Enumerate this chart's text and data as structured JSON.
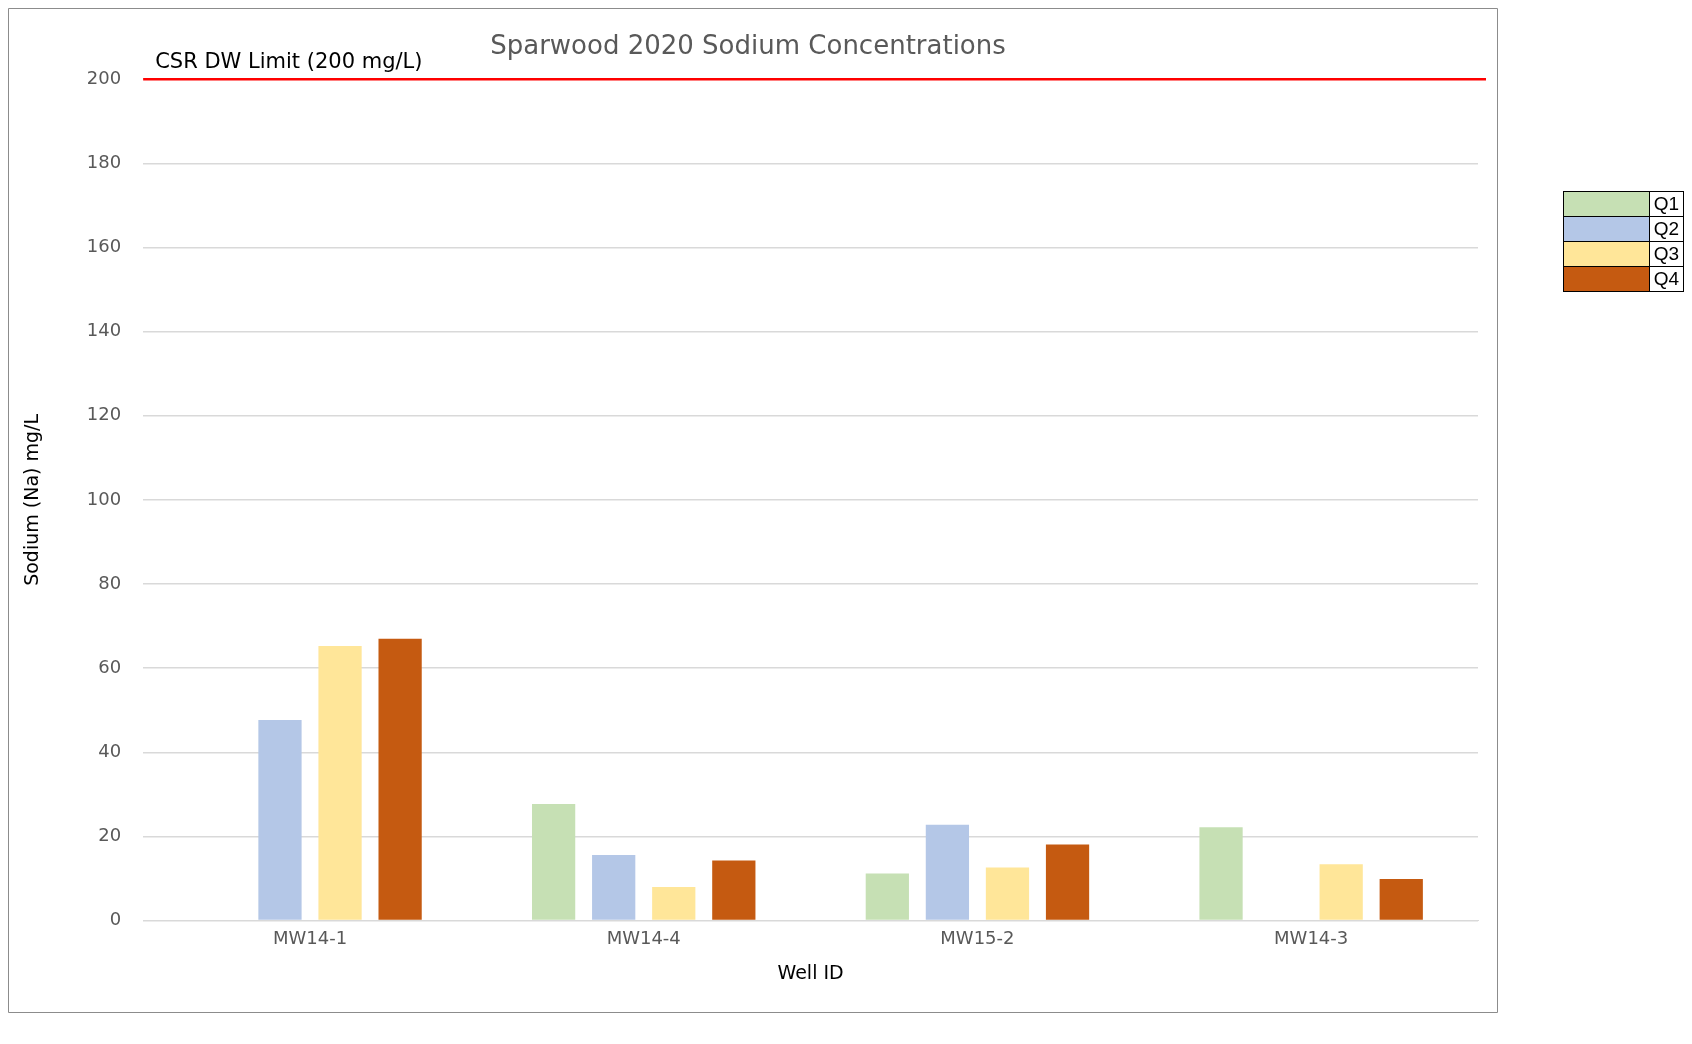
{
  "chart_data": {
    "type": "bar",
    "title": "Sparwood 2020 Sodium Concentrations",
    "xlabel": "Well ID",
    "ylabel": "Sodium (Na) mg/L",
    "categories": [
      "MW14-1",
      "MW14-4",
      "MW15-2",
      "MW14-3"
    ],
    "series": [
      {
        "name": "Q1",
        "color": "#c6e0b4",
        "values": [
          null,
          27.7,
          11.2,
          22.2
        ]
      },
      {
        "name": "Q2",
        "color": "#b4c7e7",
        "values": [
          47.7,
          15.6,
          22.8,
          null
        ]
      },
      {
        "name": "Q3",
        "color": "#ffe699",
        "values": [
          65.3,
          8,
          12.6,
          13.4
        ]
      },
      {
        "name": "Q4",
        "color": "#c55a11",
        "values": [
          67,
          14.3,
          18.1,
          9.9
        ]
      }
    ],
    "ylim": [
      0,
      200
    ],
    "yticks": [
      0,
      20,
      40,
      60,
      80,
      100,
      120,
      140,
      160,
      180,
      200
    ],
    "grid": "y",
    "legend": "right",
    "ref_lines": [
      {
        "axis": "y",
        "value": 200,
        "label": "CSR DW Limit (200 mg/L)",
        "color": "#ff0000"
      }
    ]
  }
}
